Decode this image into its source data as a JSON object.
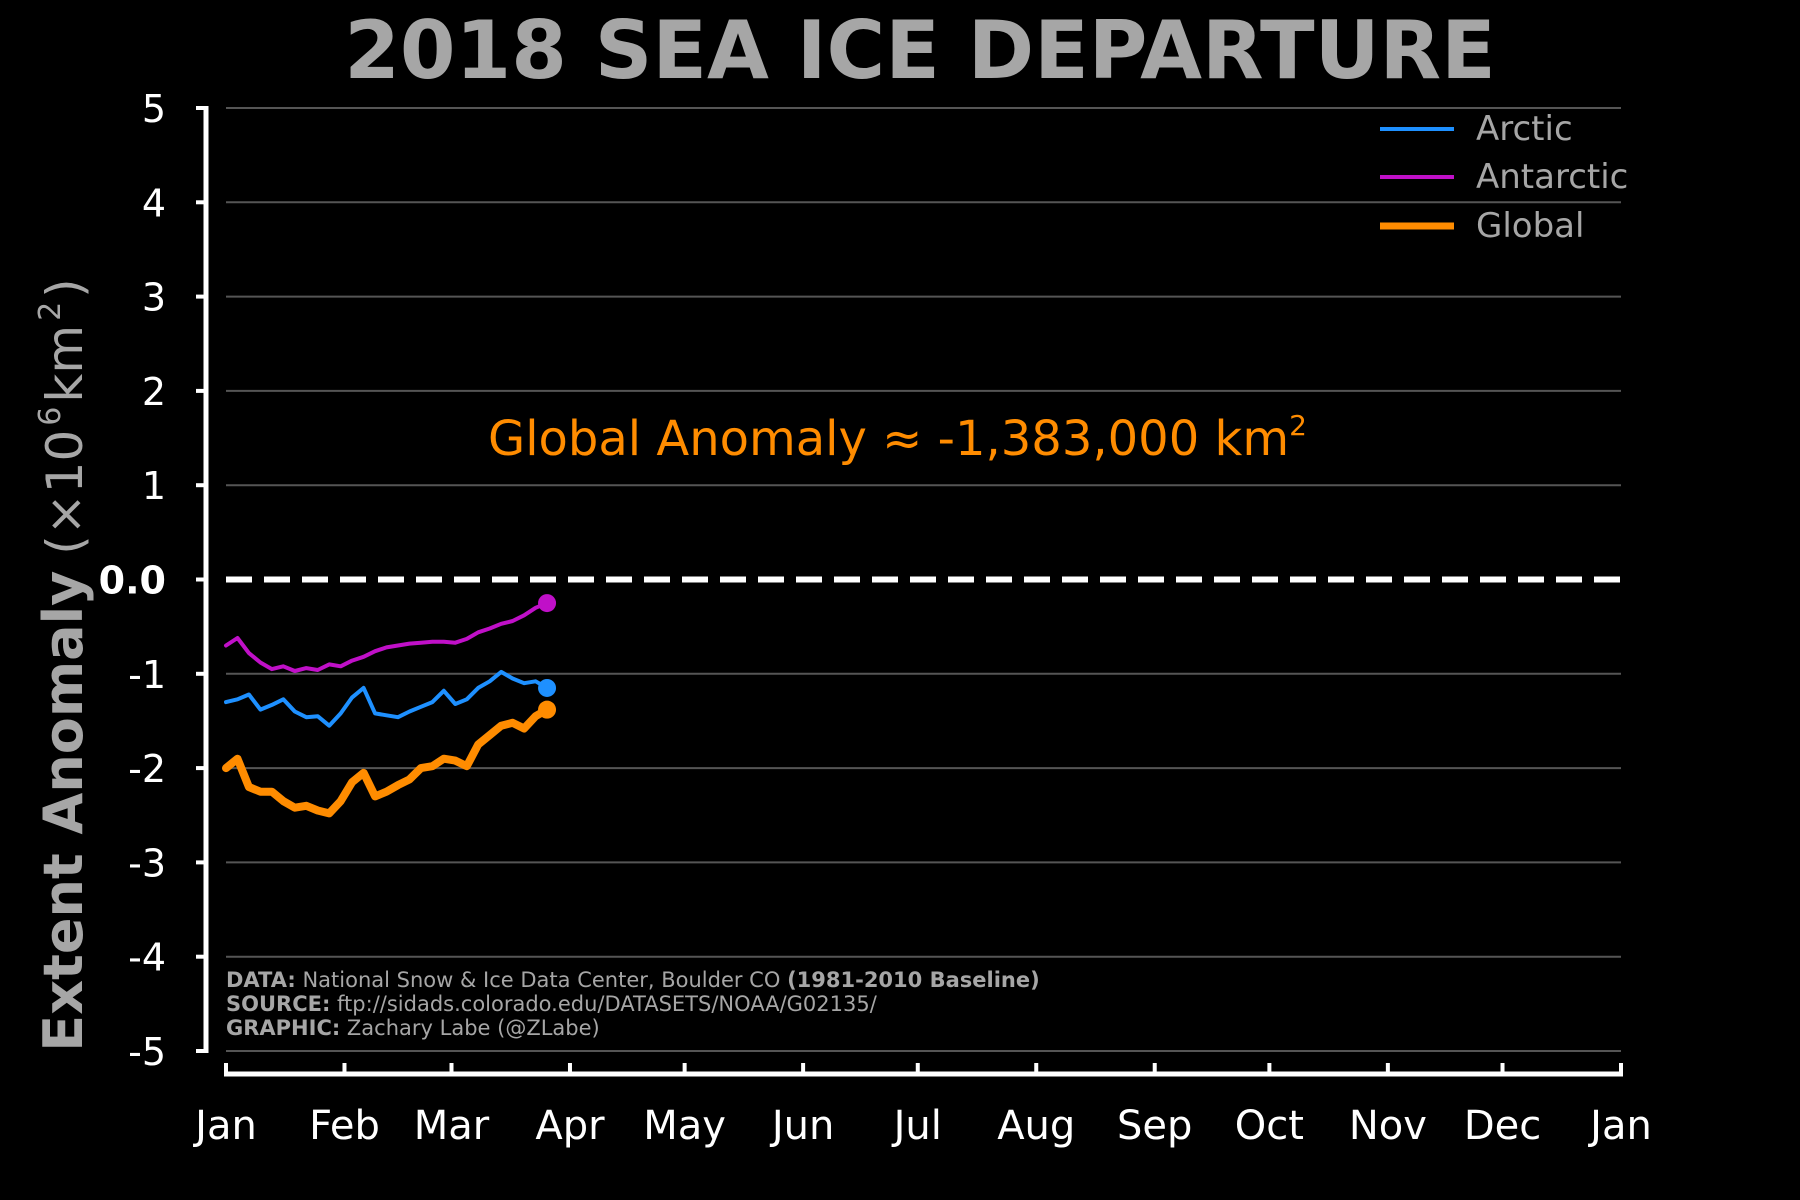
{
  "chart_data": {
    "type": "line",
    "title": "2018 SEA ICE DEPARTURE",
    "ylabel_main": "Extent Anomaly",
    "ylabel_unit_prefix": "(×10",
    "ylabel_unit_exp": "6",
    "ylabel_unit_mid": " km",
    "ylabel_unit_exp2": "2",
    "ylabel_unit_suffix": ")",
    "ylim": [
      -5,
      5
    ],
    "yticks": [
      {
        "value": 5,
        "label": "5"
      },
      {
        "value": 4,
        "label": "4"
      },
      {
        "value": 3,
        "label": "3"
      },
      {
        "value": 2,
        "label": "2"
      },
      {
        "value": 1,
        "label": "1"
      },
      {
        "value": 0,
        "label": "0.0"
      },
      {
        "value": -1,
        "label": "-1"
      },
      {
        "value": -2,
        "label": "-2"
      },
      {
        "value": -3,
        "label": "-3"
      },
      {
        "value": -4,
        "label": "-4"
      },
      {
        "value": -5,
        "label": "-5"
      }
    ],
    "xlim": [
      1,
      366
    ],
    "xticks": [
      {
        "day": 1,
        "label": "Jan"
      },
      {
        "day": 32,
        "label": "Feb"
      },
      {
        "day": 60,
        "label": "Mar"
      },
      {
        "day": 91,
        "label": "Apr"
      },
      {
        "day": 121,
        "label": "May"
      },
      {
        "day": 152,
        "label": "Jun"
      },
      {
        "day": 182,
        "label": "Jul"
      },
      {
        "day": 213,
        "label": "Aug"
      },
      {
        "day": 244,
        "label": "Sep"
      },
      {
        "day": 274,
        "label": "Oct"
      },
      {
        "day": 305,
        "label": "Nov"
      },
      {
        "day": 335,
        "label": "Dec"
      },
      {
        "day": 366,
        "label": "Jan"
      }
    ],
    "grid": true,
    "zero_line": "dashed",
    "legend_position": "top-right",
    "series": [
      {
        "name": "Arctic",
        "color": "#1e90ff",
        "x": [
          1,
          4,
          7,
          10,
          13,
          16,
          19,
          22,
          25,
          28,
          31,
          34,
          37,
          40,
          43,
          46,
          49,
          52,
          55,
          58,
          61,
          64,
          67,
          70,
          73,
          76,
          79,
          82,
          85
        ],
        "values": [
          -1.3,
          -1.27,
          -1.22,
          -1.38,
          -1.33,
          -1.27,
          -1.4,
          -1.46,
          -1.45,
          -1.55,
          -1.42,
          -1.25,
          -1.15,
          -1.42,
          -1.44,
          -1.46,
          -1.4,
          -1.35,
          -1.3,
          -1.18,
          -1.32,
          -1.27,
          -1.15,
          -1.08,
          -0.98,
          -1.05,
          -1.1,
          -1.08,
          -1.15
        ]
      },
      {
        "name": "Antarctic",
        "color": "#c010c8",
        "x": [
          1,
          4,
          7,
          10,
          13,
          16,
          19,
          22,
          25,
          28,
          31,
          34,
          37,
          40,
          43,
          46,
          49,
          52,
          55,
          58,
          61,
          64,
          67,
          70,
          73,
          76,
          79,
          82,
          85
        ],
        "values": [
          -0.7,
          -0.62,
          -0.78,
          -0.88,
          -0.95,
          -0.92,
          -0.97,
          -0.94,
          -0.96,
          -0.9,
          -0.92,
          -0.86,
          -0.82,
          -0.76,
          -0.72,
          -0.7,
          -0.68,
          -0.67,
          -0.66,
          -0.66,
          -0.67,
          -0.63,
          -0.56,
          -0.52,
          -0.47,
          -0.44,
          -0.38,
          -0.3,
          -0.25
        ]
      },
      {
        "name": "Global",
        "color": "#ff8c00",
        "x": [
          1,
          4,
          7,
          10,
          13,
          16,
          19,
          22,
          25,
          28,
          31,
          34,
          37,
          40,
          43,
          46,
          49,
          52,
          55,
          58,
          61,
          64,
          67,
          70,
          73,
          76,
          79,
          82,
          85
        ],
        "values": [
          -2.0,
          -1.9,
          -2.2,
          -2.25,
          -2.25,
          -2.35,
          -2.42,
          -2.4,
          -2.45,
          -2.48,
          -2.35,
          -2.15,
          -2.05,
          -2.3,
          -2.25,
          -2.18,
          -2.12,
          -2.0,
          -1.98,
          -1.9,
          -1.92,
          -1.98,
          -1.75,
          -1.65,
          -1.55,
          -1.52,
          -1.58,
          -1.45,
          -1.38
        ]
      }
    ],
    "annotation": {
      "text": "Global Anomaly ≈ -1,383,000 km",
      "superscript": "2",
      "color": "#ff8c00"
    }
  },
  "credits": {
    "data_label": "DATA:",
    "data_text": " National Snow & Ice Data Center, Boulder CO ",
    "data_baseline": "(1981-2010 Baseline)",
    "source_label": "SOURCE:",
    "source_text": " ftp://sidads.colorado.edu/DATASETS/NOAA/G02135/",
    "graphic_label": "GRAPHIC:",
    "graphic_text": " Zachary Labe (@ZLabe)"
  }
}
